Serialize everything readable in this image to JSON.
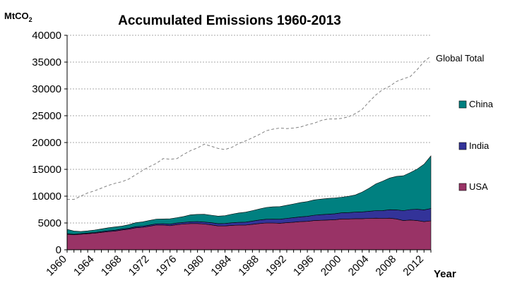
{
  "chart_data": {
    "type": "area",
    "title": "Accumulated Emissions 1960-2013",
    "ylabel_main": "MtCO",
    "ylabel_sub": "2",
    "xlabel": "Year",
    "ylim": [
      0,
      40000
    ],
    "yticks": [
      0,
      5000,
      10000,
      15000,
      20000,
      25000,
      30000,
      35000,
      40000
    ],
    "xticks": [
      1960,
      1964,
      1968,
      1972,
      1976,
      1980,
      1984,
      1988,
      1992,
      1996,
      2000,
      2004,
      2008,
      2012
    ],
    "gridlines": true,
    "legend": "right",
    "x": [
      1960,
      1961,
      1962,
      1963,
      1964,
      1965,
      1966,
      1967,
      1968,
      1969,
      1970,
      1971,
      1972,
      1973,
      1974,
      1975,
      1976,
      1977,
      1978,
      1979,
      1980,
      1981,
      1982,
      1983,
      1984,
      1985,
      1986,
      1987,
      1988,
      1989,
      1990,
      1991,
      1992,
      1993,
      1994,
      1995,
      1996,
      1997,
      1998,
      1999,
      2000,
      2001,
      2002,
      2003,
      2004,
      2005,
      2006,
      2007,
      2008,
      2009,
      2010,
      2011,
      2012,
      2013
    ],
    "series": [
      {
        "name": "USA",
        "color": "#993366",
        "values": [
          2900,
          2800,
          2900,
          3000,
          3100,
          3250,
          3400,
          3500,
          3700,
          3850,
          4100,
          4200,
          4400,
          4600,
          4600,
          4500,
          4700,
          4800,
          4900,
          4900,
          4800,
          4650,
          4450,
          4450,
          4550,
          4600,
          4600,
          4750,
          4900,
          5000,
          5000,
          4950,
          5050,
          5150,
          5250,
          5300,
          5450,
          5500,
          5550,
          5600,
          5750,
          5750,
          5800,
          5800,
          5850,
          5900,
          5850,
          5900,
          5750,
          5450,
          5550,
          5450,
          5250,
          5400
        ]
      },
      {
        "name": "India",
        "color": "#333399",
        "values": [
          100,
          100,
          110,
          120,
          130,
          140,
          150,
          160,
          170,
          180,
          200,
          210,
          220,
          230,
          250,
          270,
          290,
          310,
          330,
          350,
          370,
          400,
          430,
          460,
          490,
          520,
          560,
          600,
          650,
          700,
          710,
          750,
          800,
          850,
          900,
          940,
          1000,
          1050,
          1080,
          1120,
          1150,
          1180,
          1220,
          1270,
          1340,
          1400,
          1470,
          1580,
          1700,
          1850,
          1950,
          2100,
          2200,
          2300
        ]
      },
      {
        "name": "China",
        "color": "#008080",
        "values": [
          800,
          600,
          400,
          400,
          450,
          500,
          550,
          600,
          550,
          650,
          750,
          800,
          850,
          900,
          900,
          1000,
          1000,
          1100,
          1300,
          1350,
          1450,
          1400,
          1400,
          1450,
          1600,
          1750,
          1850,
          1950,
          2050,
          2200,
          2300,
          2350,
          2450,
          2550,
          2650,
          2750,
          2850,
          2900,
          2950,
          2950,
          2900,
          3050,
          3200,
          3700,
          4300,
          5000,
          5500,
          5900,
          6250,
          6500,
          6900,
          7500,
          8500,
          9800
        ]
      },
      {
        "name": "Global Total",
        "color": "#808080",
        "dashed": true,
        "values": [
          9400,
          9400,
          10000,
          10600,
          11000,
          11500,
          12000,
          12400,
          12700,
          13200,
          14000,
          14800,
          15500,
          16100,
          17000,
          16900,
          17000,
          17800,
          18500,
          19000,
          19700,
          19300,
          18900,
          18700,
          19100,
          19800,
          20300,
          20900,
          21500,
          22200,
          22500,
          22700,
          22600,
          22700,
          22900,
          23300,
          23600,
          24100,
          24400,
          24400,
          24500,
          24800,
          25400,
          26200,
          27600,
          28900,
          29900,
          30500,
          31400,
          31900,
          32300,
          33600,
          35100,
          36100
        ]
      }
    ]
  }
}
